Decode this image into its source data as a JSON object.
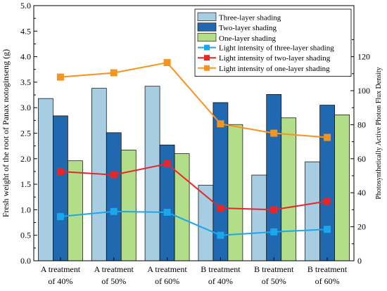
{
  "chart_data": {
    "type": "bar",
    "title": "",
    "ylabel_left": "Fresh weight of the root of Panax notoginseng (g)",
    "ylabel_right": "Photosynthetically Active Photon Flux Density",
    "xlabel": "",
    "ylim_left": [
      0,
      5.0
    ],
    "ylim_right": [
      0,
      150
    ],
    "yticks_left": [
      "0.0",
      "0.5",
      "1.0",
      "1.5",
      "2.0",
      "2.5",
      "3.0",
      "3.5",
      "4.0",
      "4.5",
      "5.0"
    ],
    "yticks_right": [
      "0",
      "20",
      "40",
      "60",
      "80",
      "100",
      "120"
    ],
    "categories": [
      [
        "A treatment",
        "of 40%"
      ],
      [
        "A treatment",
        "of 50%"
      ],
      [
        "A treatment",
        "of 60%"
      ],
      [
        "B treatment",
        "of 40%"
      ],
      [
        "B treatment",
        "of 50%"
      ],
      [
        "B treatment",
        "of 60%"
      ]
    ],
    "bar_series": [
      {
        "name": "Three-layer shading",
        "color": "#a6cde1",
        "values": [
          3.18,
          3.38,
          3.42,
          1.48,
          1.68,
          1.94
        ]
      },
      {
        "name": "Two-layer shading",
        "color": "#2068b0",
        "values": [
          2.84,
          2.51,
          2.27,
          3.1,
          3.26,
          3.05
        ]
      },
      {
        "name": "One-layer shading",
        "color": "#b2de8a",
        "values": [
          1.96,
          2.17,
          2.1,
          2.67,
          2.8,
          2.86
        ]
      }
    ],
    "line_series": [
      {
        "name": "Light intensity of three-layer shading",
        "color": "#1aa7ec",
        "values": [
          26.0,
          29.0,
          28.5,
          15.0,
          17.0,
          18.5
        ]
      },
      {
        "name": "Light intensity of two-layer shading",
        "color": "#e8262a",
        "values": [
          52.5,
          50.5,
          57.0,
          31.0,
          30.0,
          35.0
        ]
      },
      {
        "name": "Light intensity of one-layer shading",
        "color": "#f7941d",
        "values": [
          108.0,
          110.5,
          116.5,
          80.5,
          75.0,
          72.5
        ]
      }
    ],
    "legend_position": "top-right",
    "grid": false
  }
}
